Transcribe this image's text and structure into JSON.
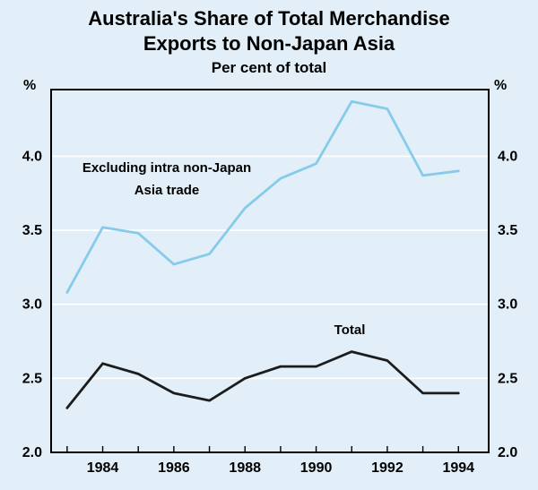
{
  "header": {
    "title_line1": "Australia's Share of Total Merchandise",
    "title_line2": "Exports to Non-Japan Asia",
    "subtitle": "Per cent of total"
  },
  "axes": {
    "unit_left": "%",
    "unit_right": "%"
  },
  "chart_data": {
    "type": "line",
    "title": "Australia's Share of Total Merchandise Exports to Non-Japan Asia",
    "subtitle": "Per cent of total",
    "x": [
      1983,
      1984,
      1985,
      1986,
      1987,
      1988,
      1989,
      1990,
      1991,
      1992,
      1993,
      1994
    ],
    "series": [
      {
        "name": "Excluding intra non-Japan Asia trade",
        "color": "#86cbe9",
        "values": [
          3.08,
          3.52,
          3.48,
          3.27,
          3.34,
          3.65,
          3.85,
          3.95,
          4.37,
          4.32,
          3.87,
          3.9
        ]
      },
      {
        "name": "Total",
        "color": "#1c1c1c",
        "values": [
          2.3,
          2.6,
          2.53,
          2.4,
          2.35,
          2.5,
          2.58,
          2.58,
          2.68,
          2.62,
          2.4,
          2.4
        ]
      }
    ],
    "annotations": [
      {
        "line1": "Excluding intra non-Japan",
        "line2": "Asia trade"
      },
      {
        "line1": "Total"
      }
    ],
    "ylim": [
      2.0,
      4.45
    ],
    "yticks": [
      2.0,
      2.5,
      3.0,
      3.5,
      4.0
    ],
    "ytick_labels": [
      "2.0",
      "2.5",
      "3.0",
      "3.5",
      "4.0"
    ],
    "xticks": [
      1984,
      1986,
      1988,
      1990,
      1992,
      1994
    ],
    "xlim": [
      1982.55,
      1994.85
    ],
    "grid": "horizontal",
    "grid_color": "#ffffff",
    "background": "#e2eff8",
    "plot_border_color": "#000000",
    "legend_position": "in-plot annotations"
  }
}
